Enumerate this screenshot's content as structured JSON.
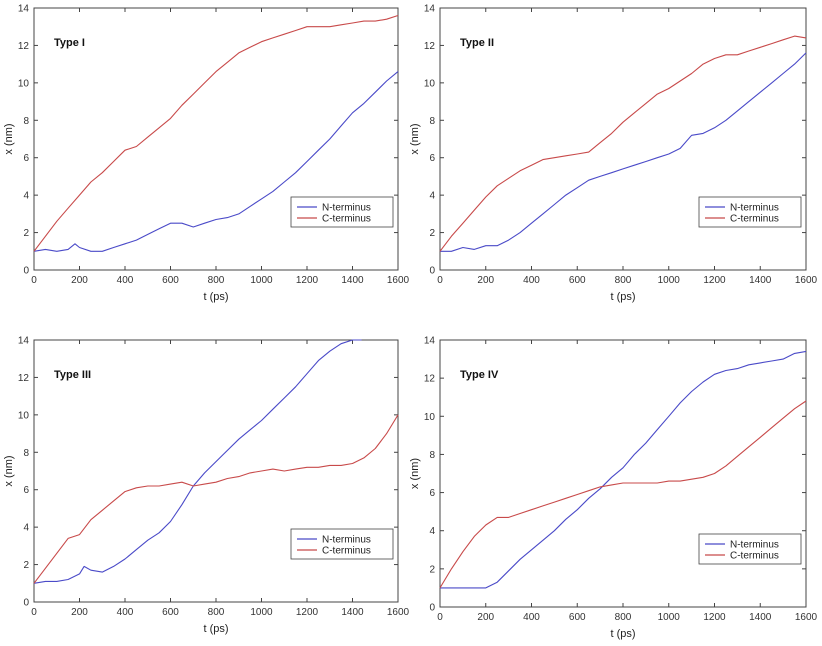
{
  "figure": {
    "description_free": true
  },
  "chart_data": [
    {
      "type": "line",
      "title": "Type I",
      "xlabel": "t (ps)",
      "ylabel": "x (nm)",
      "xlim": [
        0,
        1600
      ],
      "ylim": [
        0,
        14
      ],
      "xticks": [
        "0",
        "200",
        "400",
        "600",
        "800",
        "1000",
        "1200",
        "1400",
        "1600"
      ],
      "yticks": [
        "0",
        "2",
        "4",
        "6",
        "8",
        "10",
        "12",
        "14"
      ],
      "legend_position": "lower-right",
      "series": [
        {
          "name": "N-terminus",
          "color": "#4a4ac8",
          "x": [
            0,
            50,
            100,
            150,
            180,
            200,
            250,
            300,
            350,
            400,
            450,
            500,
            550,
            600,
            650,
            700,
            750,
            800,
            850,
            900,
            950,
            1000,
            1050,
            1100,
            1150,
            1200,
            1250,
            1300,
            1350,
            1400,
            1450,
            1500,
            1550,
            1600
          ],
          "y": [
            1.0,
            1.1,
            1.0,
            1.1,
            1.4,
            1.2,
            1.0,
            1.0,
            1.2,
            1.4,
            1.6,
            1.9,
            2.2,
            2.5,
            2.5,
            2.3,
            2.5,
            2.7,
            2.8,
            3.0,
            3.4,
            3.8,
            4.2,
            4.7,
            5.2,
            5.8,
            6.4,
            7.0,
            7.7,
            8.4,
            8.9,
            9.5,
            10.1,
            10.6
          ]
        },
        {
          "name": "C-terminus",
          "color": "#c84a4a",
          "x": [
            0,
            50,
            100,
            150,
            200,
            250,
            300,
            350,
            400,
            450,
            500,
            550,
            600,
            650,
            700,
            750,
            800,
            850,
            900,
            950,
            1000,
            1050,
            1100,
            1150,
            1200,
            1250,
            1300,
            1350,
            1400,
            1450,
            1500,
            1550,
            1600
          ],
          "y": [
            1.0,
            1.8,
            2.6,
            3.3,
            4.0,
            4.7,
            5.2,
            5.8,
            6.4,
            6.6,
            7.1,
            7.6,
            8.1,
            8.8,
            9.4,
            10.0,
            10.6,
            11.1,
            11.6,
            11.9,
            12.2,
            12.4,
            12.6,
            12.8,
            13.0,
            13.0,
            13.0,
            13.1,
            13.2,
            13.3,
            13.3,
            13.4,
            13.6
          ]
        }
      ]
    },
    {
      "type": "line",
      "title": "Type II",
      "xlabel": "t (ps)",
      "ylabel": "x (nm)",
      "xlim": [
        0,
        1600
      ],
      "ylim": [
        0,
        14
      ],
      "xticks": [
        "0",
        "200",
        "400",
        "600",
        "800",
        "1000",
        "1200",
        "1400",
        "1600"
      ],
      "yticks": [
        "0",
        "2",
        "4",
        "6",
        "8",
        "10",
        "12",
        "14"
      ],
      "legend_position": "lower-right",
      "series": [
        {
          "name": "N-terminus",
          "color": "#4a4ac8",
          "x": [
            0,
            50,
            100,
            150,
            200,
            250,
            300,
            350,
            400,
            450,
            500,
            550,
            600,
            650,
            700,
            750,
            800,
            850,
            900,
            950,
            1000,
            1050,
            1100,
            1150,
            1200,
            1250,
            1300,
            1350,
            1400,
            1450,
            1500,
            1550,
            1600
          ],
          "y": [
            1.0,
            1.0,
            1.2,
            1.1,
            1.3,
            1.3,
            1.6,
            2.0,
            2.5,
            3.0,
            3.5,
            4.0,
            4.4,
            4.8,
            5.0,
            5.2,
            5.4,
            5.6,
            5.8,
            6.0,
            6.2,
            6.5,
            7.2,
            7.3,
            7.6,
            8.0,
            8.5,
            9.0,
            9.5,
            10.0,
            10.5,
            11.0,
            11.6
          ]
        },
        {
          "name": "C-terminus",
          "color": "#c84a4a",
          "x": [
            0,
            50,
            100,
            150,
            200,
            250,
            300,
            350,
            400,
            450,
            500,
            550,
            600,
            650,
            700,
            750,
            800,
            850,
            900,
            950,
            1000,
            1050,
            1100,
            1150,
            1200,
            1250,
            1300,
            1350,
            1400,
            1450,
            1500,
            1550,
            1600
          ],
          "y": [
            1.0,
            1.8,
            2.5,
            3.2,
            3.9,
            4.5,
            4.9,
            5.3,
            5.6,
            5.9,
            6.0,
            6.1,
            6.2,
            6.3,
            6.8,
            7.3,
            7.9,
            8.4,
            8.9,
            9.4,
            9.7,
            10.1,
            10.5,
            11.0,
            11.3,
            11.5,
            11.5,
            11.7,
            11.9,
            12.1,
            12.3,
            12.5,
            12.4
          ]
        }
      ]
    },
    {
      "type": "line",
      "title": "Type III",
      "xlabel": "t (ps)",
      "ylabel": "x (nm)",
      "xlim": [
        0,
        1600
      ],
      "ylim": [
        0,
        14
      ],
      "xticks": [
        "0",
        "200",
        "400",
        "600",
        "800",
        "1000",
        "1200",
        "1400",
        "1600"
      ],
      "yticks": [
        "0",
        "2",
        "4",
        "6",
        "8",
        "10",
        "12",
        "14"
      ],
      "legend_position": "lower-right",
      "series": [
        {
          "name": "N-terminus",
          "color": "#4a4ac8",
          "x": [
            0,
            50,
            100,
            150,
            200,
            220,
            250,
            300,
            350,
            400,
            450,
            500,
            550,
            600,
            650,
            700,
            750,
            800,
            850,
            900,
            950,
            1000,
            1050,
            1100,
            1150,
            1200,
            1250,
            1300,
            1350,
            1400,
            1440
          ],
          "y": [
            1.0,
            1.1,
            1.1,
            1.2,
            1.5,
            1.9,
            1.7,
            1.6,
            1.9,
            2.3,
            2.8,
            3.3,
            3.7,
            4.3,
            5.2,
            6.2,
            6.9,
            7.5,
            8.1,
            8.7,
            9.2,
            9.7,
            10.3,
            10.9,
            11.5,
            12.2,
            12.9,
            13.4,
            13.8,
            14.0,
            14.0
          ]
        },
        {
          "name": "C-terminus",
          "color": "#c84a4a",
          "x": [
            0,
            50,
            100,
            150,
            200,
            250,
            300,
            350,
            400,
            450,
            500,
            550,
            600,
            650,
            700,
            750,
            800,
            850,
            900,
            950,
            1000,
            1050,
            1100,
            1150,
            1200,
            1250,
            1300,
            1350,
            1400,
            1450,
            1500,
            1550,
            1600
          ],
          "y": [
            1.0,
            1.8,
            2.6,
            3.4,
            3.6,
            4.4,
            4.9,
            5.4,
            5.9,
            6.1,
            6.2,
            6.2,
            6.3,
            6.4,
            6.2,
            6.3,
            6.4,
            6.6,
            6.7,
            6.9,
            7.0,
            7.1,
            7.0,
            7.1,
            7.2,
            7.2,
            7.3,
            7.3,
            7.4,
            7.7,
            8.2,
            9.0,
            10.0
          ]
        }
      ]
    },
    {
      "type": "line",
      "title": "Type IV",
      "xlabel": "t (ps)",
      "ylabel": "x (nm)",
      "xlim": [
        0,
        1600
      ],
      "ylim": [
        0,
        14
      ],
      "xticks": [
        "0",
        "200",
        "400",
        "600",
        "800",
        "1000",
        "1200",
        "1400",
        "1600"
      ],
      "yticks": [
        "0",
        "2",
        "4",
        "6",
        "8",
        "10",
        "12",
        "14"
      ],
      "legend_position": "lower-right",
      "series": [
        {
          "name": "N-terminus",
          "color": "#4a4ac8",
          "x": [
            0,
            50,
            100,
            150,
            200,
            250,
            300,
            350,
            400,
            450,
            500,
            550,
            600,
            650,
            700,
            750,
            800,
            850,
            900,
            950,
            1000,
            1050,
            1100,
            1150,
            1200,
            1250,
            1300,
            1350,
            1400,
            1450,
            1500,
            1550,
            1600
          ],
          "y": [
            1.0,
            1.0,
            1.0,
            1.0,
            1.0,
            1.3,
            1.9,
            2.5,
            3.0,
            3.5,
            4.0,
            4.6,
            5.1,
            5.7,
            6.2,
            6.8,
            7.3,
            8.0,
            8.6,
            9.3,
            10.0,
            10.7,
            11.3,
            11.8,
            12.2,
            12.4,
            12.5,
            12.7,
            12.8,
            12.9,
            13.0,
            13.3,
            13.4
          ]
        },
        {
          "name": "C-terminus",
          "color": "#c84a4a",
          "x": [
            0,
            50,
            100,
            150,
            200,
            250,
            300,
            350,
            400,
            450,
            500,
            550,
            600,
            650,
            700,
            750,
            800,
            850,
            900,
            950,
            1000,
            1050,
            1100,
            1150,
            1200,
            1250,
            1300,
            1350,
            1400,
            1450,
            1500,
            1550,
            1600
          ],
          "y": [
            1.0,
            2.0,
            2.9,
            3.7,
            4.3,
            4.7,
            4.7,
            4.9,
            5.1,
            5.3,
            5.5,
            5.7,
            5.9,
            6.1,
            6.3,
            6.4,
            6.5,
            6.5,
            6.5,
            6.5,
            6.6,
            6.6,
            6.7,
            6.8,
            7.0,
            7.4,
            7.9,
            8.4,
            8.9,
            9.4,
            9.9,
            10.4,
            10.8
          ]
        }
      ]
    }
  ]
}
